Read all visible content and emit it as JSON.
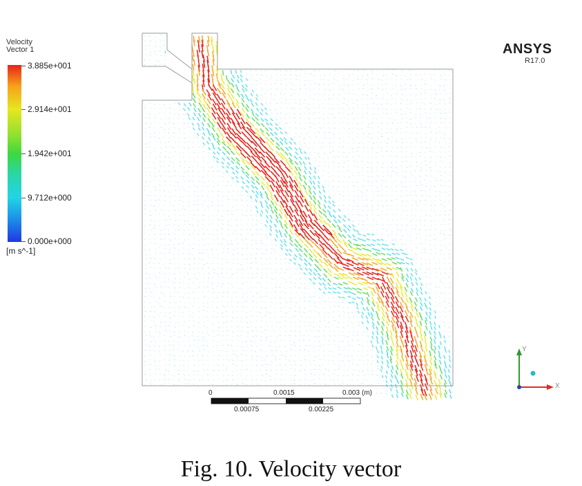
{
  "legend": {
    "title_line1": "Velocity",
    "title_line2": "Vector 1",
    "ticks": [
      "3.885e+001",
      "2.914e+001",
      "1.942e+001",
      "9.712e+000",
      "0.000e+000"
    ],
    "units": "[m s^-1]",
    "colors": [
      "#e8231a",
      "#f6a21a",
      "#e8e61f",
      "#3fd83e",
      "#22d4e6",
      "#1f37e2"
    ]
  },
  "brand": {
    "name": "ANSYS",
    "version": "R17.0"
  },
  "scale_bar": {
    "top_labels": [
      "0",
      "0.0015",
      "0.003"
    ],
    "unit": "(m)",
    "bottom_labels": [
      "0.00075",
      "0.00225"
    ]
  },
  "axes": {
    "y": "Y",
    "x": "X"
  },
  "caption": "Fig. 10.  Velocity vector"
}
